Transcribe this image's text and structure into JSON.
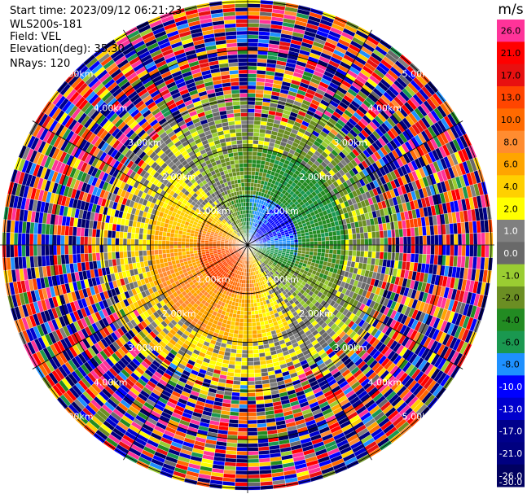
{
  "header": {
    "start_time": "Start time: 2023/09/12 06:21:23",
    "instrument": "WLS200s-181",
    "field": "Field: VEL",
    "elevation": "Elevation(deg): 35.30",
    "nrays": "NRays: 120"
  },
  "chart_data": {
    "type": "heatmap",
    "projection": "polar-ppi",
    "units": "m/s",
    "nrays": 120,
    "elevation_deg": 35.3,
    "range_rings_km": [
      1.0,
      2.0,
      3.0,
      4.0,
      5.0
    ],
    "range_labels": [
      "1.00km",
      "2.00km",
      "3.00km",
      "4.00km",
      "5.00km"
    ],
    "max_range_km": 5.1,
    "colorbar": {
      "title": "m/s",
      "ticks": [
        "26.0",
        "21.0",
        "17.0",
        "13.0",
        "10.0",
        "8.0",
        "6.0",
        "4.0",
        "2.0",
        "1.0",
        "0.0",
        "-1.0",
        "-2.0",
        "-4.0",
        "-6.0",
        "-8.0",
        "-10.0",
        "-13.0",
        "-17.0",
        "-21.0",
        "-26.0",
        "-30.0"
      ],
      "bins": [
        {
          "lo": 21,
          "hi": 26,
          "color": "#ff3399"
        },
        {
          "lo": 17,
          "hi": 21,
          "color": "#ff0000"
        },
        {
          "lo": 13,
          "hi": 17,
          "color": "#e81010"
        },
        {
          "lo": 10,
          "hi": 13,
          "color": "#ff4500"
        },
        {
          "lo": 8,
          "hi": 10,
          "color": "#ff6a00"
        },
        {
          "lo": 6,
          "hi": 8,
          "color": "#ff8c30"
        },
        {
          "lo": 4,
          "hi": 6,
          "color": "#ffa500"
        },
        {
          "lo": 2,
          "hi": 4,
          "color": "#ffd000"
        },
        {
          "lo": 1,
          "hi": 2,
          "color": "#ffff00"
        },
        {
          "lo": 0,
          "hi": 1,
          "color": "#808080"
        },
        {
          "lo": -1,
          "hi": 0,
          "color": "#696969"
        },
        {
          "lo": -2,
          "hi": -1,
          "color": "#9acd32"
        },
        {
          "lo": -4,
          "hi": -2,
          "color": "#6b8e23"
        },
        {
          "lo": -6,
          "hi": -4,
          "color": "#228b22"
        },
        {
          "lo": -8,
          "hi": -6,
          "color": "#1a9850"
        },
        {
          "lo": -10,
          "hi": -8,
          "color": "#1e90ff"
        },
        {
          "lo": -13,
          "hi": -10,
          "color": "#0000ff"
        },
        {
          "lo": -17,
          "hi": -13,
          "color": "#0000cd"
        },
        {
          "lo": -21,
          "hi": -17,
          "color": "#00008b"
        },
        {
          "lo": -26,
          "hi": -21,
          "color": "#000080"
        },
        {
          "lo": -30,
          "hi": -26,
          "color": "#000060"
        }
      ]
    },
    "regions_description": "Inner ~1 km: blue (-10 to -13 m/s) toward north-east, red/orange (6-13 m/s) toward south-west; 1-2 km: green (-2 to -8) north/east, orange/yellow (2-6) west/south; 2-3 km: mixed yellow/grey/olive; beyond 3 km: noisy speckle across full scale"
  }
}
